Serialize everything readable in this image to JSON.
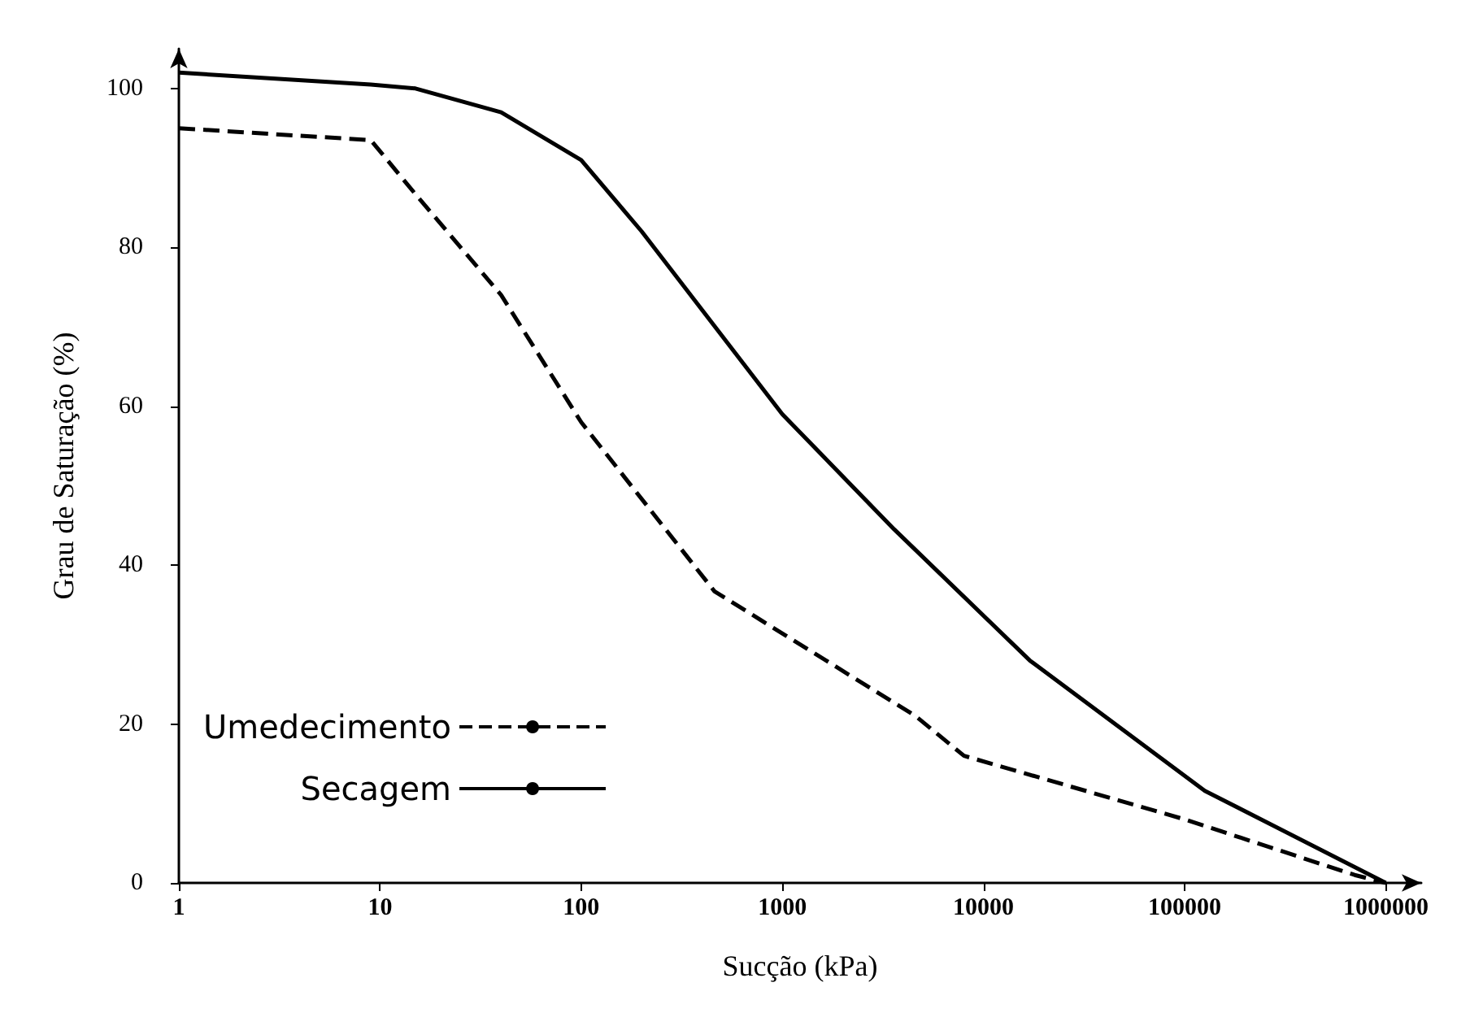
{
  "chart_data": {
    "type": "line",
    "xlabel": "Sucção (kPa)",
    "ylabel": "Grau de Saturação (%)",
    "log": "x",
    "xlim": [
      1,
      1500000
    ],
    "xticks": [
      1,
      10,
      100,
      1000,
      10000,
      100000,
      1000000
    ],
    "ylim": [
      0,
      105
    ],
    "yticks": [
      0,
      20,
      40,
      60,
      80,
      100
    ],
    "grid": false,
    "legend": "bottom left",
    "marker": "none",
    "series": [
      {
        "name": "Umedecimento",
        "color": "#000000",
        "line_style": "dashed",
        "x": [
          1,
          9,
          15,
          40,
          100,
          460,
          4600,
          8000,
          100000,
          700000,
          1000000
        ],
        "values": [
          95,
          93.5,
          86.7,
          74,
          58,
          36.7,
          21,
          16,
          8,
          1,
          0
        ]
      },
      {
        "name": "Secagem",
        "color": "#000000",
        "line_style": "solid",
        "x": [
          1,
          9,
          15,
          40,
          100,
          200,
          1000,
          3600,
          17000,
          126000,
          1000000
        ],
        "values": [
          102,
          100.5,
          100,
          97,
          91,
          82,
          59,
          44.5,
          28,
          11.6,
          0
        ]
      }
    ]
  }
}
